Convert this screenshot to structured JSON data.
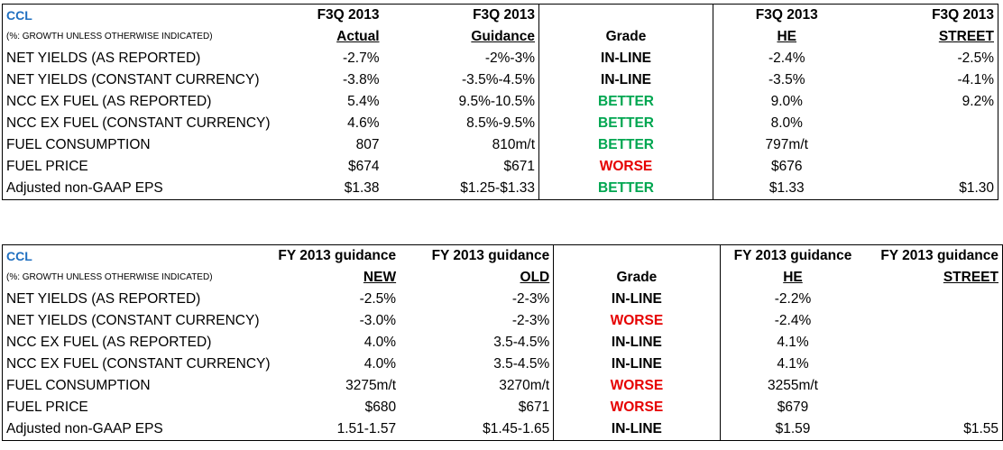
{
  "table1": {
    "company": "CCL",
    "note": "(%: GROWTH UNLESS OTHERWISE INDICATED)",
    "headers_top": [
      "F3Q 2013",
      "F3Q 2013",
      "",
      "F3Q 2013",
      "F3Q 2013"
    ],
    "headers_bottom": [
      "Actual",
      "Guidance",
      "Grade",
      "HE",
      "STREET"
    ],
    "rows": [
      {
        "label": "NET YIELDS (AS REPORTED)",
        "v1": "-2.7%",
        "v2": "-2%-3%",
        "grade": "IN-LINE",
        "he": "-2.4%",
        "street": "-2.5%"
      },
      {
        "label": "NET YIELDS (CONSTANT CURRENCY)",
        "v1": "-3.8%",
        "v2": "-3.5%-4.5%",
        "grade": "IN-LINE",
        "he": "-3.5%",
        "street": "-4.1%"
      },
      {
        "label": "NCC EX FUEL (AS REPORTED)",
        "v1": "5.4%",
        "v2": "9.5%-10.5%",
        "grade": "BETTER",
        "he": "9.0%",
        "street": "9.2%"
      },
      {
        "label": "NCC EX FUEL (CONSTANT CURRENCY)",
        "v1": "4.6%",
        "v2": "8.5%-9.5%",
        "grade": "BETTER",
        "he": "8.0%",
        "street": ""
      },
      {
        "label": "FUEL CONSUMPTION",
        "v1": "807",
        "v2": "810m/t",
        "grade": "BETTER",
        "he": "797m/t",
        "street": ""
      },
      {
        "label": "FUEL PRICE",
        "v1": "$674",
        "v2": "$671",
        "grade": "WORSE",
        "he": "$676",
        "street": ""
      },
      {
        "label": "Adjusted non-GAAP EPS",
        "v1": "$1.38",
        "v2": "$1.25-$1.33",
        "grade": "BETTER",
        "he": "$1.33",
        "street": "$1.30"
      }
    ]
  },
  "table2": {
    "company": "CCL",
    "note": "(%: GROWTH UNLESS OTHERWISE INDICATED)",
    "headers_top": [
      "FY 2013 guidance",
      "FY 2013 guidance",
      "",
      "FY 2013 guidance",
      "FY 2013 guidance"
    ],
    "headers_bottom": [
      "NEW",
      "OLD",
      "Grade",
      "HE",
      "STREET"
    ],
    "rows": [
      {
        "label": "NET YIELDS (AS REPORTED)",
        "v1": "-2.5%",
        "v2": "-2-3%",
        "grade": "IN-LINE",
        "he": "-2.2%",
        "street": ""
      },
      {
        "label": "NET YIELDS (CONSTANT CURRENCY)",
        "v1": "-3.0%",
        "v2": "-2-3%",
        "grade": "WORSE",
        "he": "-2.4%",
        "street": ""
      },
      {
        "label": "NCC EX FUEL (AS REPORTED)",
        "v1": "4.0%",
        "v2": "3.5-4.5%",
        "grade": "IN-LINE",
        "he": "4.1%",
        "street": ""
      },
      {
        "label": "NCC EX FUEL (CONSTANT CURRENCY)",
        "v1": "4.0%",
        "v2": "3.5-4.5%",
        "grade": "IN-LINE",
        "he": "4.1%",
        "street": ""
      },
      {
        "label": "FUEL CONSUMPTION",
        "v1": "3275m/t",
        "v2": "3270m/t",
        "grade": "WORSE",
        "he": "3255m/t",
        "street": ""
      },
      {
        "label": "FUEL PRICE",
        "v1": "$680",
        "v2": "$671",
        "grade": "WORSE",
        "he": "$679",
        "street": ""
      },
      {
        "label": "Adjusted non-GAAP EPS",
        "v1": "1.51-1.57",
        "v2": "$1.45-1.65",
        "grade": "IN-LINE",
        "he": "$1.59",
        "street": "$1.55"
      }
    ]
  },
  "grade_colors": {
    "IN-LINE": "#000000",
    "BETTER": "#00a650",
    "WORSE": "#e60000"
  }
}
